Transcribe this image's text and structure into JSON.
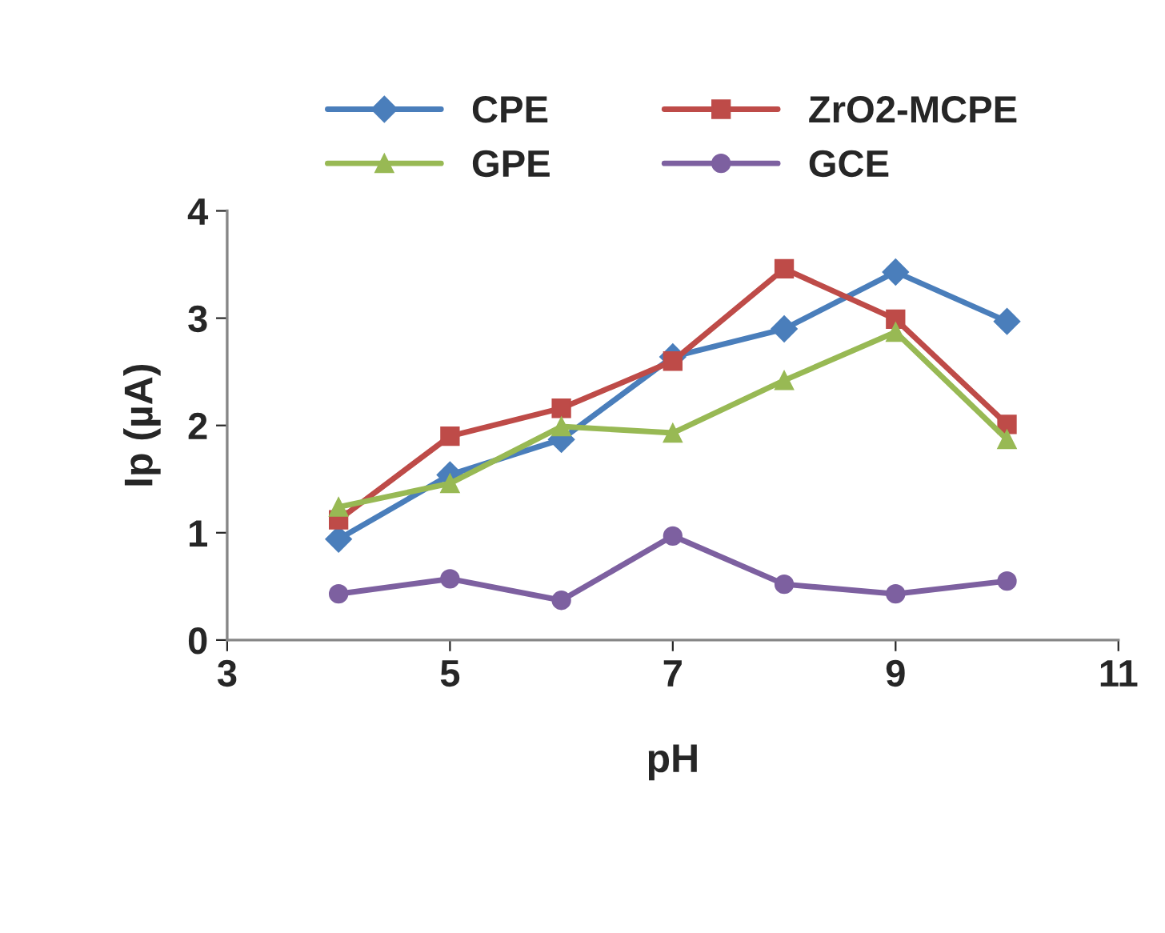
{
  "chart_data": {
    "type": "line",
    "xlabel": "pH",
    "ylabel": "Ip (µA)",
    "xlim": [
      3,
      11
    ],
    "xticks": [
      3,
      5,
      7,
      9,
      11
    ],
    "ylim": [
      0,
      4
    ],
    "yticks": [
      0,
      1,
      2,
      3,
      4
    ],
    "x": [
      4,
      5,
      6,
      7,
      8,
      9,
      10
    ],
    "grid": false,
    "legend": "top",
    "line_style": "solid",
    "series": [
      {
        "name": "CPE",
        "color": "#4a7ebb",
        "marker": "diamond",
        "values": [
          0.94,
          1.54,
          1.87,
          2.64,
          2.9,
          3.43,
          2.97
        ]
      },
      {
        "name": "ZrO2-MCPE",
        "color": "#be4b48",
        "marker": "square",
        "values": [
          1.12,
          1.9,
          2.16,
          2.6,
          3.46,
          2.99,
          2.01
        ]
      },
      {
        "name": "GPE",
        "color": "#98b954",
        "marker": "triangle",
        "values": [
          1.24,
          1.46,
          1.99,
          1.93,
          2.42,
          2.87,
          1.87
        ]
      },
      {
        "name": "GCE",
        "color": "#7d60a0",
        "marker": "circle",
        "values": [
          0.43,
          0.57,
          0.37,
          0.97,
          0.52,
          0.43,
          0.55
        ]
      }
    ]
  }
}
